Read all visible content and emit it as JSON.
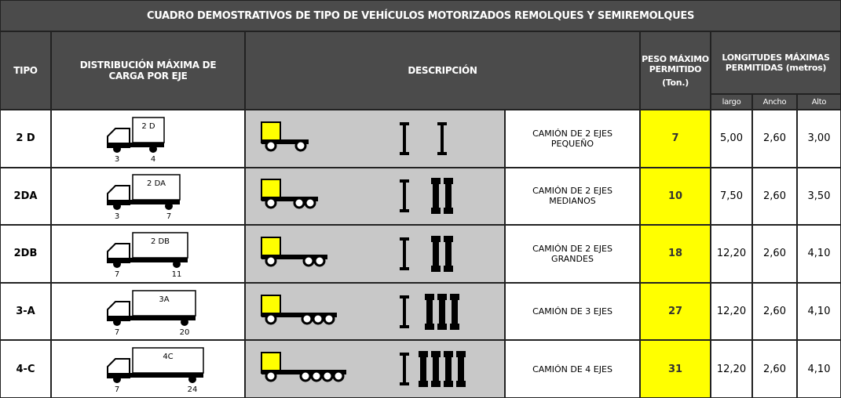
{
  "title": "CUADRO DEMOSTRATIVOS DE TIPO DE VEHÍCULOS MOTORIZADOS REMOLQUES Y SEMIREMOLQUES",
  "header": {
    "tipo": "TIPO",
    "distribucion": "DISTRIBUCIÓN MÁXIMA DE CARGA POR EJE",
    "descripcion": "DESCRIPCIÓN",
    "peso": "PESO MÁXIMO PERMITIDO",
    "peso_unit": "(Ton.)",
    "longitudes": "LONGITUDES MÁXIMAS PERMITIDAS (metros)",
    "largo": "largo",
    "ancho": "Ancho",
    "alto": "Alto"
  },
  "rows": [
    {
      "tipo": "2 D",
      "truck_label": "2 D",
      "axle_loads": [
        "3",
        "4"
      ],
      "descripcion": "CAMIÓN DE 2 EJES PEQUEÑO",
      "peso": "7",
      "largo": "5,00",
      "ancho": "2,60",
      "alto": "3,00"
    },
    {
      "tipo": "2DA",
      "truck_label": "2 DA",
      "axle_loads": [
        "3",
        "7"
      ],
      "descripcion": "CAMIÓN DE 2 EJES MEDIANOS",
      "peso": "10",
      "largo": "7,50",
      "ancho": "2,60",
      "alto": "3,50"
    },
    {
      "tipo": "2DB",
      "truck_label": "2 DB",
      "axle_loads": [
        "7",
        "11"
      ],
      "descripcion": "CAMIÓN DE 2 EJES GRANDES",
      "peso": "18",
      "largo": "12,20",
      "ancho": "2,60",
      "alto": "4,10"
    },
    {
      "tipo": "3-A",
      "truck_label": "3A",
      "axle_loads": [
        "7",
        "20"
      ],
      "descripcion": "CAMIÓN DE 3 EJES",
      "peso": "27",
      "largo": "12,20",
      "ancho": "2,60",
      "alto": "4,10"
    },
    {
      "tipo": "4-C",
      "truck_label": "4C",
      "axle_loads": [
        "7",
        "24"
      ],
      "descripcion": "CAMIÓN DE 4 EJES",
      "peso": "31",
      "largo": "12,20",
      "ancho": "2,60",
      "alto": "4,10"
    }
  ]
}
